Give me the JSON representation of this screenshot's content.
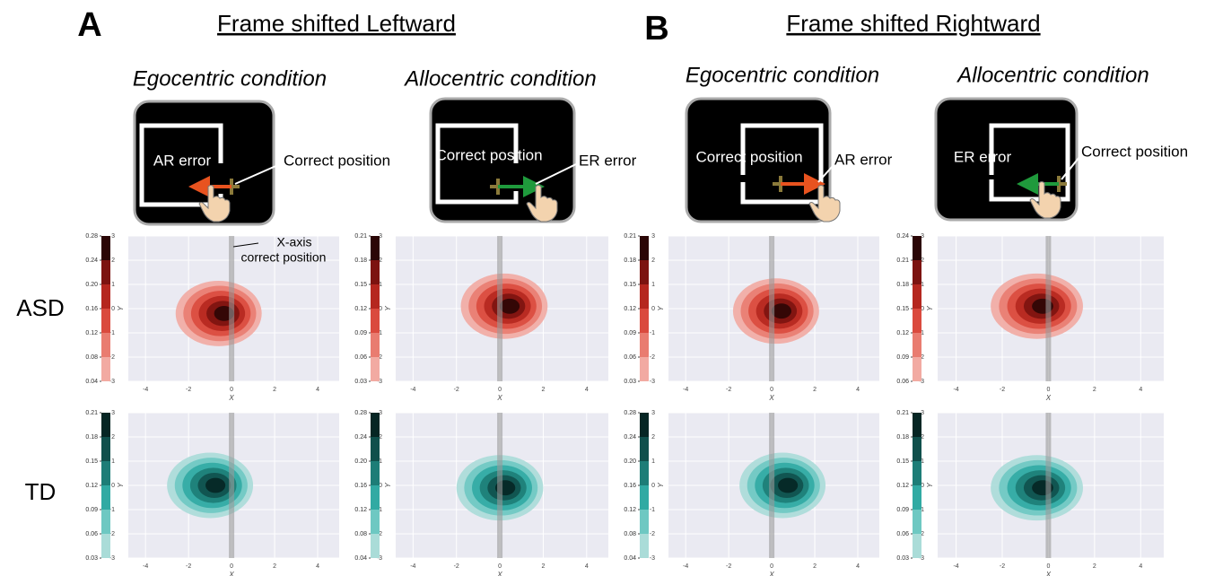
{
  "panels": [
    {
      "letter": "A",
      "title": "Frame shifted Leftward",
      "conditions": [
        {
          "title": "Egocentric condition",
          "inside_label": "AR error",
          "outside_label": "Correct position"
        },
        {
          "title": "Allocentric condition",
          "inside_label": "Correct position",
          "outside_label": "ER error"
        }
      ]
    },
    {
      "letter": "B",
      "title": "Frame shifted Rightward",
      "conditions": [
        {
          "title": "Egocentric condition",
          "inside_label": "Correct position",
          "outside_label": "AR error"
        },
        {
          "title": "Allocentric condition",
          "inside_label": "ER error",
          "outside_label": "Correct position"
        }
      ]
    }
  ],
  "annotation": [
    "X-axis",
    "correct position"
  ],
  "axes": {
    "x_label": "X",
    "y_label": "Y",
    "xlim": [
      -4.8,
      5
    ],
    "ylim": [
      -3,
      3
    ],
    "xticks": [
      -4,
      -2,
      0,
      2,
      4
    ],
    "yticks": [
      -3,
      -2,
      -1,
      0,
      1,
      2,
      3
    ]
  },
  "rows": [
    {
      "label": "ASD",
      "colors": [
        "#f2aaa2",
        "#e97c70",
        "#da4a3e",
        "#b5271f",
        "#7c1310",
        "#2b0606"
      ],
      "plots": [
        {
          "cbar_ticks": [
            0.04,
            0.08,
            0.12,
            0.16,
            {
              "value": 0.2,
              "label": "0.20"
            },
            0.24,
            0.28
          ]
        },
        {
          "cbar_ticks": [
            0.03,
            0.06,
            0.09,
            0.12,
            0.15,
            0.18,
            0.21
          ]
        },
        {
          "cbar_ticks": [
            0.03,
            0.06,
            0.09,
            0.12,
            0.15,
            0.18,
            0.21
          ]
        },
        {
          "cbar_ticks": [
            0.06,
            0.09,
            0.12,
            0.15,
            0.18,
            0.21,
            0.24
          ]
        }
      ]
    },
    {
      "label": "TD",
      "colors": [
        "#aadcd8",
        "#6ec8c2",
        "#31aaa3",
        "#1d7d77",
        "#10504c",
        "#062624"
      ],
      "plots": [
        {
          "cbar_ticks": [
            0.03,
            0.06,
            0.09,
            0.12,
            0.15,
            0.18,
            0.21
          ]
        },
        {
          "cbar_ticks": [
            0.04,
            0.08,
            0.12,
            0.16,
            {
              "value": 0.2,
              "label": "0.20"
            },
            0.24,
            0.28
          ]
        },
        {
          "cbar_ticks": [
            0.04,
            0.08,
            0.12,
            0.16,
            {
              "value": 0.2,
              "label": "0.20"
            },
            0.24,
            0.28
          ]
        },
        {
          "cbar_ticks": [
            0.03,
            0.06,
            0.09,
            0.12,
            0.15,
            0.18,
            0.21
          ]
        }
      ]
    }
  ]
}
